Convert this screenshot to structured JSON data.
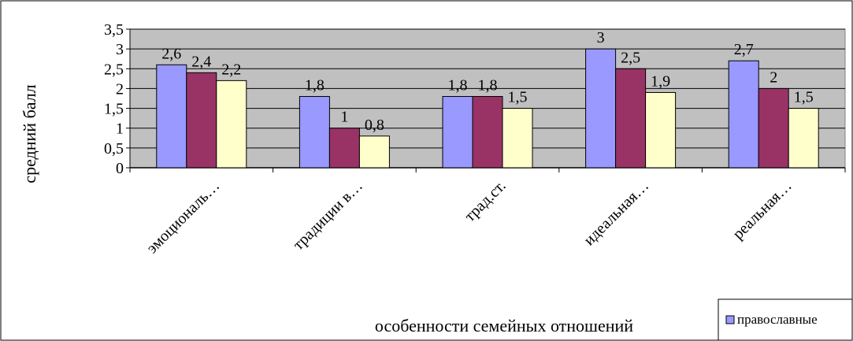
{
  "chart_data": {
    "type": "bar",
    "categories": [
      "эмоциональ…",
      "традиции в…",
      "трад.ст.",
      "идеальная…",
      "реальная…"
    ],
    "series": [
      {
        "name": "православные",
        "color": "#9999ff",
        "values": [
          2.6,
          1.8,
          1.8,
          3,
          2.7
        ],
        "labels": [
          "2,6",
          "1,8",
          "1,8",
          "3",
          "2,7"
        ]
      },
      {
        "color": "#993366",
        "values": [
          2.4,
          1,
          1.8,
          2.5,
          2
        ],
        "labels": [
          "2,4",
          "1",
          "1,8",
          "2,5",
          "2"
        ]
      },
      {
        "color": "#ffffcc",
        "values": [
          2.2,
          0.8,
          1.5,
          1.9,
          1.5
        ],
        "labels": [
          "2,2",
          "0,8",
          "1,5",
          "1,9",
          "1,5"
        ]
      }
    ],
    "xlabel": "особенности семейных отношений",
    "ylabel": "средний балл",
    "ylim": [
      0,
      3.5
    ],
    "yticks": [
      "0",
      "0,5",
      "1",
      "1,5",
      "2",
      "2,5",
      "3",
      "3,5"
    ],
    "plot_background": "#c0c0c0",
    "grid": true,
    "legend_position": "bottom-right"
  }
}
